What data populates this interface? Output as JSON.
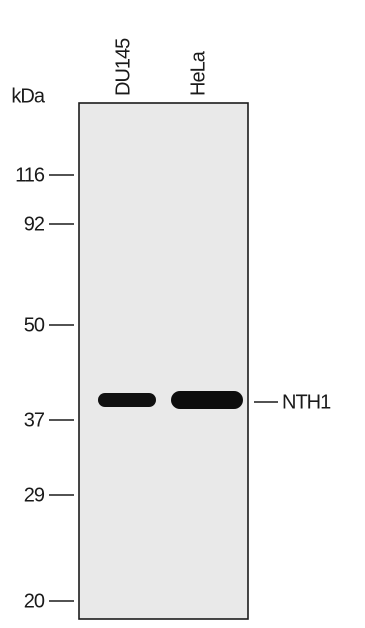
{
  "unit_label": "kDa",
  "lanes": [
    "DU145",
    "HeLa"
  ],
  "markers": [
    116,
    92,
    50,
    37,
    29,
    20
  ],
  "band_label": "NTH1"
}
